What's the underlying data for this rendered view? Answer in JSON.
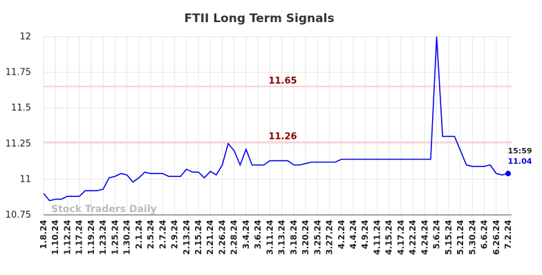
{
  "chart_data": {
    "type": "line",
    "title": "FTII Long Term Signals",
    "categories": [
      "1.8.24",
      null,
      "1.10.24",
      null,
      "1.12.24",
      null,
      "1.17.24",
      null,
      "1.19.24",
      null,
      "1.23.24",
      null,
      "1.25.24",
      null,
      "1.30.24",
      null,
      "2.1.24",
      null,
      "2.5.24",
      null,
      "2.7.24",
      null,
      "2.9.24",
      null,
      "2.13.24",
      null,
      "2.15.24",
      null,
      "2.21.24",
      null,
      "2.26.24",
      null,
      "2.28.24",
      null,
      "3.4.24",
      null,
      "3.6.24",
      null,
      "3.11.24",
      null,
      "3.13.24",
      null,
      "3.18.24",
      null,
      "3.20.24",
      null,
      "3.25.24",
      null,
      "3.27.24",
      null,
      "4.2.24",
      null,
      "4.4.24",
      null,
      "4.9.24",
      null,
      "4.11.24",
      null,
      "4.15.24",
      null,
      "4.17.24",
      null,
      "4.22.24",
      null,
      "4.24.24",
      null,
      "5.6.24",
      null,
      "5.15.24",
      null,
      "5.21.24",
      null,
      "5.30.24",
      null,
      "6.6.24",
      null,
      "6.26.24",
      null,
      "7.2.24"
    ],
    "values": [
      10.9,
      10.85,
      10.86,
      10.86,
      10.88,
      10.88,
      10.88,
      10.92,
      10.92,
      10.92,
      10.93,
      11.01,
      11.02,
      11.04,
      11.03,
      10.98,
      11.01,
      11.05,
      11.04,
      11.04,
      11.04,
      11.02,
      11.02,
      11.02,
      11.07,
      11.05,
      11.05,
      11.01,
      11.055,
      11.03,
      11.1,
      11.25,
      11.2,
      11.1,
      11.21,
      11.1,
      11.1,
      11.1,
      11.13,
      11.13,
      11.13,
      11.13,
      11.1,
      11.1,
      11.11,
      11.12,
      11.12,
      11.12,
      11.12,
      11.12,
      11.14,
      11.14,
      11.14,
      11.14,
      11.14,
      11.14,
      11.14,
      11.14,
      11.14,
      11.14,
      11.14,
      11.14,
      11.14,
      11.14,
      11.14,
      11.14,
      12.0,
      11.3,
      11.3,
      11.3,
      11.2,
      11.1,
      11.09,
      11.09,
      11.09,
      11.1,
      11.04,
      11.03,
      11.04
    ],
    "color": "#0000ee",
    "ylim": [
      10.75,
      12
    ],
    "yticks": [
      10.75,
      11,
      11.25,
      11.5,
      11.75,
      12
    ],
    "grid": true,
    "hlines": [
      11.65,
      11.26
    ],
    "hline_color": "#ffcccc",
    "hline_label_color": "#8b0000",
    "last_time": "15:59",
    "last_label_color": "#0000ee",
    "watermark": "Stock Traders Daily"
  }
}
